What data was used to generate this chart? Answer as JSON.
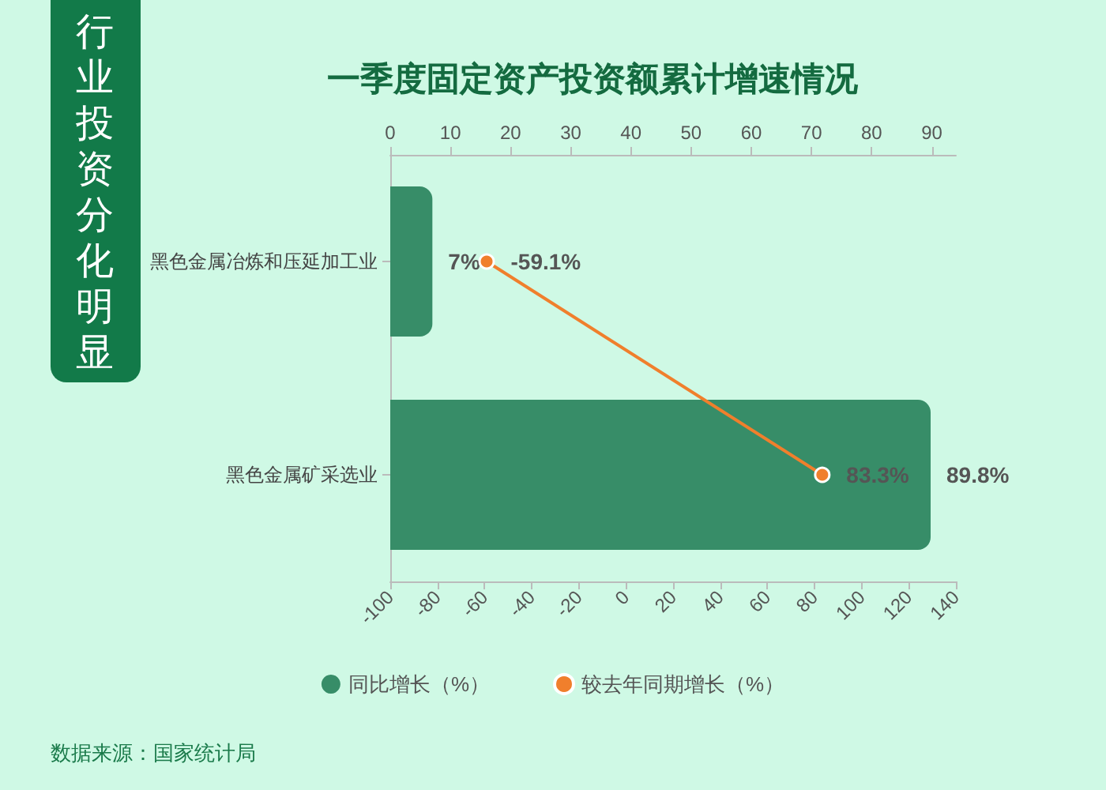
{
  "chart_data": {
    "type": "bar",
    "title": "一季度固定资产投资额累计增速情况",
    "subtitle": "行业投资分化明显",
    "orientation": "horizontal",
    "categories": [
      "黑色金属冶炼和压延加工业",
      "黑色金属矿采选业"
    ],
    "series": [
      {
        "name": "同比增长（%）",
        "axis": "x2",
        "color": "#378d68",
        "values": [
          7,
          89.8
        ],
        "value_labels": [
          "7%",
          "89.8%"
        ]
      },
      {
        "name": "较去年同期增长（%）",
        "type": "line",
        "color": "#f07f2c",
        "marker": "circle",
        "values": [
          -59.1,
          83.3
        ],
        "value_labels": [
          "-59.1%",
          "83.3%"
        ]
      }
    ],
    "x2lim": [
      0,
      94
    ],
    "x2ticks": [
      0,
      10,
      20,
      30,
      40,
      50,
      60,
      70,
      80,
      90
    ],
    "xlim": [
      -100,
      140
    ],
    "xticks": [
      -100,
      -80,
      -60,
      -40,
      -20,
      0,
      20,
      40,
      60,
      80,
      100,
      120,
      140
    ],
    "grid": false,
    "legend": "bottom",
    "annotations": [
      "数据来源：国家统计局"
    ]
  }
}
